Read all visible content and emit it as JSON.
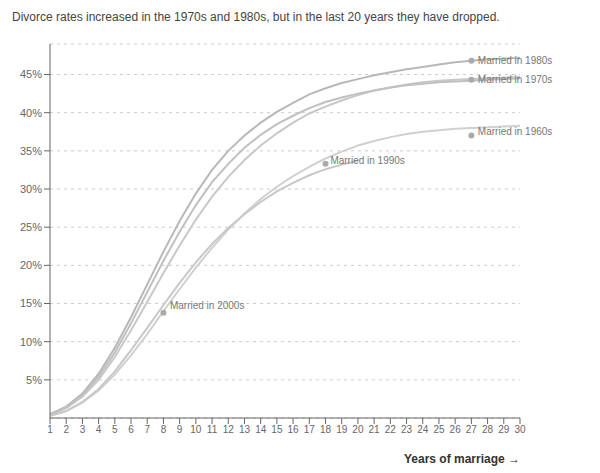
{
  "chart_data": {
    "type": "line",
    "title": "Divorce rates increased in the 1970s and 1980s, but in the last 20 years they have dropped.",
    "x_label": "Years of marriage →",
    "grid": true,
    "xlim": [
      1,
      30
    ],
    "xticks": [
      1,
      2,
      3,
      4,
      5,
      6,
      7,
      8,
      9,
      10,
      11,
      12,
      13,
      14,
      15,
      16,
      17,
      18,
      19,
      20,
      21,
      22,
      23,
      24,
      25,
      26,
      27,
      28,
      29,
      30
    ],
    "ylim": [
      0,
      0.49
    ],
    "yticks": [
      {
        "value": 0.05,
        "label": "5%"
      },
      {
        "value": 0.1,
        "label": "10%"
      },
      {
        "value": 0.15,
        "label": "15%"
      },
      {
        "value": 0.2,
        "label": "20%"
      },
      {
        "value": 0.25,
        "label": "25%"
      },
      {
        "value": 0.3,
        "label": "30%"
      },
      {
        "value": 0.35,
        "label": "35%"
      },
      {
        "value": 0.4,
        "label": "40%"
      },
      {
        "value": 0.45,
        "label": "45%"
      }
    ],
    "series": [
      {
        "name": "Married in 1980s",
        "color": "#b8b8b8",
        "x": [
          1,
          2,
          3,
          4,
          5,
          6,
          7,
          8,
          9,
          10,
          11,
          12,
          13,
          14,
          15,
          16,
          17,
          18,
          19,
          20,
          21,
          22,
          23,
          24,
          25,
          26,
          27,
          28,
          29,
          30
        ],
        "values": [
          0.005,
          0.015,
          0.032,
          0.058,
          0.092,
          0.132,
          0.175,
          0.218,
          0.258,
          0.294,
          0.325,
          0.35,
          0.37,
          0.387,
          0.401,
          0.413,
          0.424,
          0.432,
          0.439,
          0.444,
          0.449,
          0.453,
          0.457,
          0.46,
          0.463,
          0.466,
          0.468,
          0.47,
          0.471,
          0.472
        ]
      },
      {
        "name": "Married in 1970s",
        "color": "#c8c8c8",
        "x": [
          1,
          2,
          3,
          4,
          5,
          6,
          7,
          8,
          9,
          10,
          11,
          12,
          13,
          14,
          15,
          16,
          17,
          18,
          19,
          20,
          21,
          22,
          23,
          24,
          25,
          26,
          27,
          28,
          29,
          30
        ],
        "values": [
          0.004,
          0.013,
          0.028,
          0.05,
          0.08,
          0.115,
          0.152,
          0.19,
          0.226,
          0.26,
          0.29,
          0.316,
          0.338,
          0.357,
          0.373,
          0.387,
          0.399,
          0.408,
          0.416,
          0.423,
          0.429,
          0.433,
          0.437,
          0.44,
          0.442,
          0.443,
          0.444,
          0.445,
          0.446,
          0.447
        ]
      },
      {
        "name": "Married in 1960s",
        "color": "#d0d0d0",
        "x": [
          1,
          2,
          3,
          4,
          5,
          6,
          7,
          8,
          9,
          10,
          11,
          12,
          13,
          14,
          15,
          16,
          17,
          18,
          19,
          20,
          21,
          22,
          23,
          24,
          25,
          26,
          27,
          28,
          29,
          30
        ],
        "values": [
          0.003,
          0.009,
          0.02,
          0.036,
          0.057,
          0.082,
          0.11,
          0.14,
          0.169,
          0.197,
          0.223,
          0.247,
          0.268,
          0.287,
          0.303,
          0.317,
          0.329,
          0.34,
          0.349,
          0.357,
          0.363,
          0.368,
          0.372,
          0.375,
          0.377,
          0.379,
          0.38,
          0.381,
          0.382,
          0.383
        ]
      },
      {
        "name": "Married in 1990s",
        "color": "#c0c0c0",
        "x": [
          1,
          2,
          3,
          4,
          5,
          6,
          7,
          8,
          9,
          10,
          11,
          12,
          13,
          14,
          15,
          16,
          17,
          18,
          19,
          20,
          21,
          22,
          23,
          24,
          25,
          26,
          27,
          28,
          29,
          30
        ],
        "values": [
          0.004,
          0.014,
          0.03,
          0.054,
          0.086,
          0.124,
          0.165,
          0.206,
          0.244,
          0.279,
          0.309,
          0.333,
          0.354,
          0.371,
          0.385,
          0.396,
          0.406,
          0.414,
          0.42,
          0.425,
          0.429,
          0.433,
          0.436,
          0.438,
          0.44,
          0.441,
          0.442,
          0.443,
          0.444,
          0.445
        ]
      },
      {
        "name": "Married in 2000s",
        "color": "#c8c8c8",
        "x": [
          1,
          2,
          3,
          4,
          5,
          6,
          7,
          8,
          9,
          10,
          11,
          12,
          13,
          14,
          15,
          16,
          17,
          18,
          19,
          20
        ],
        "values": [
          0.003,
          0.009,
          0.021,
          0.038,
          0.061,
          0.089,
          0.118,
          0.148,
          0.177,
          0.204,
          0.228,
          0.249,
          0.267,
          0.283,
          0.297,
          0.308,
          0.318,
          0.326,
          0.332,
          0.337
        ]
      }
    ],
    "annotations": [
      {
        "text": "Married in 1980s",
        "x": 27.4,
        "y": 0.468,
        "dot_x": 27,
        "dot_y": 0.468,
        "color": "#aaaaaa"
      },
      {
        "text": "Married in 1970s",
        "x": 27.4,
        "y": 0.443,
        "dot_x": 27,
        "dot_y": 0.443,
        "color": "#aaaaaa"
      },
      {
        "text": "Married in 1960s",
        "x": 27.4,
        "y": 0.376,
        "dot_x": 27,
        "dot_y": 0.37,
        "color": "#aaaaaa"
      },
      {
        "text": "Married in 1990s",
        "x": 18.3,
        "y": 0.338,
        "dot_x": 18,
        "dot_y": 0.333,
        "color": "#aaaaaa"
      },
      {
        "text": "Married in 2000s",
        "x": 8.4,
        "y": 0.148,
        "dot_x": 8,
        "dot_y": 0.138,
        "color": "#aaaaaa"
      }
    ]
  }
}
